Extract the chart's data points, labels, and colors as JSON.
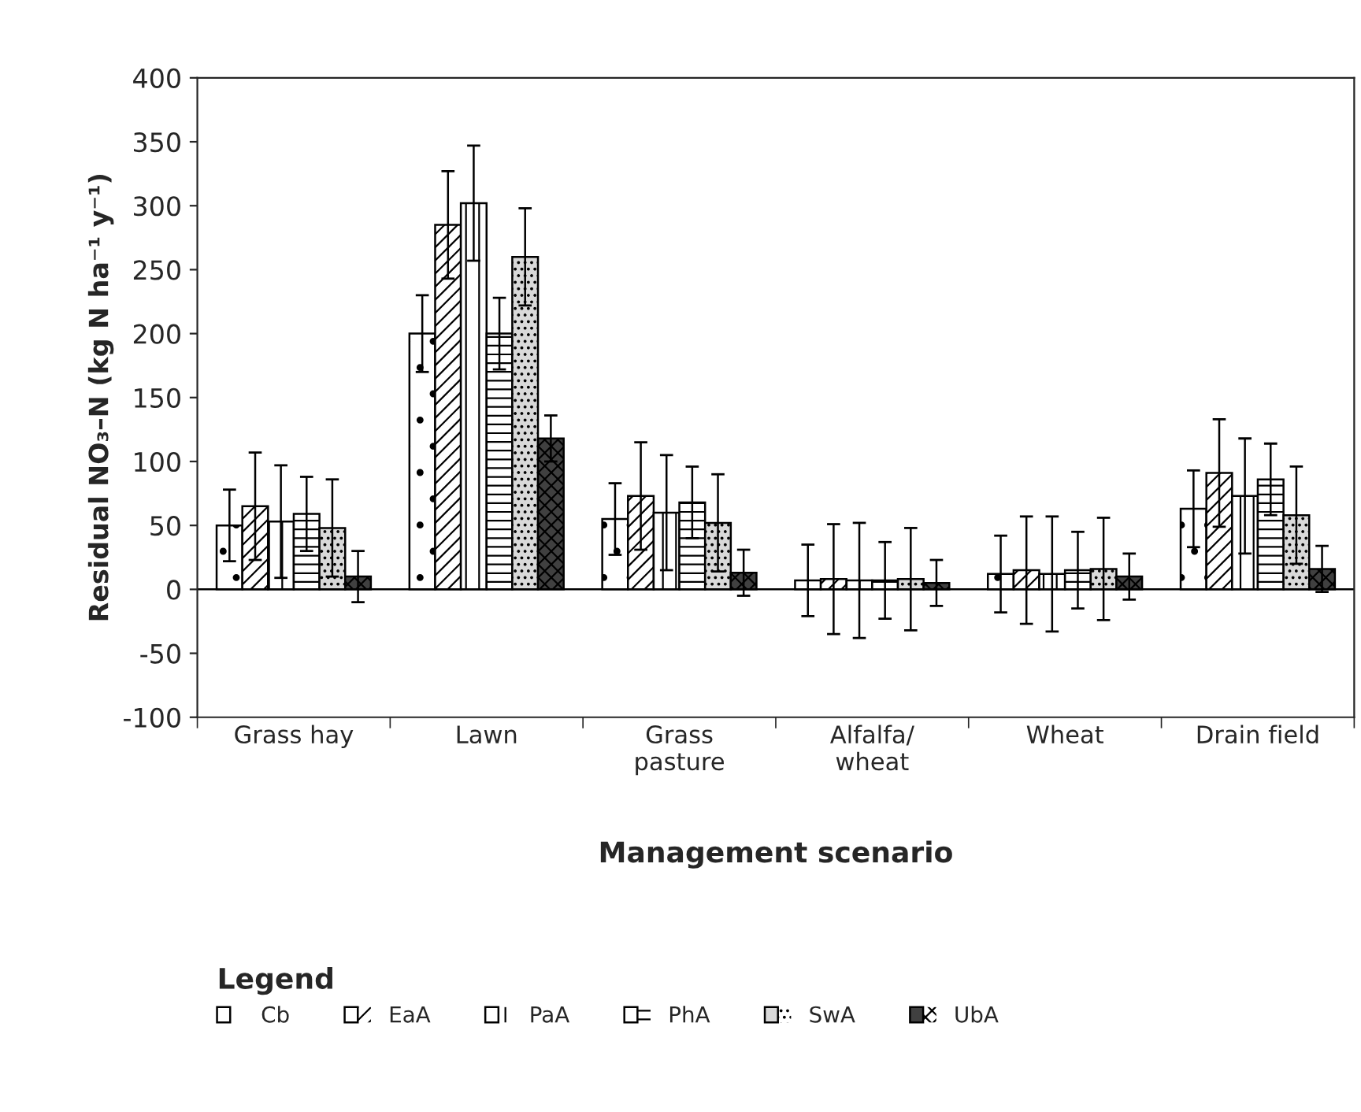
{
  "chart_data": {
    "type": "bar",
    "xlabel": "Management scenario",
    "ylabel": "Residual NO₃–N (kg N ha⁻¹ y⁻¹)",
    "legend_title": "Legend",
    "legend": "bottom",
    "categories": [
      "Grass hay",
      "Lawn",
      "Grass\npasture",
      "Alfalfa/\nwheat",
      "Wheat",
      "Drain field"
    ],
    "ylim": [
      -100,
      400
    ],
    "yticks": [
      -100,
      -50,
      0,
      50,
      100,
      150,
      200,
      250,
      300,
      350,
      400
    ],
    "series": [
      {
        "name": "Cb",
        "color": "#ffffff",
        "values": [
          50,
          200,
          55,
          7,
          12,
          63
        ],
        "errors": [
          28,
          30,
          28,
          28,
          30,
          30
        ]
      },
      {
        "name": "EaA",
        "color": "#ffffff",
        "values": [
          65,
          285,
          73,
          8,
          15,
          91
        ],
        "errors": [
          42,
          42,
          42,
          43,
          42,
          42
        ]
      },
      {
        "name": "PaA",
        "color": "#ffffff",
        "values": [
          53,
          302,
          60,
          7,
          12,
          73
        ],
        "errors": [
          44,
          45,
          45,
          45,
          45,
          45
        ]
      },
      {
        "name": "PhA",
        "color": "#ffffff",
        "values": [
          59,
          200,
          68,
          7,
          15,
          86
        ],
        "errors": [
          29,
          28,
          28,
          30,
          30,
          28
        ]
      },
      {
        "name": "SwA",
        "color": "#d9d9d9",
        "values": [
          48,
          260,
          52,
          8,
          16,
          58
        ],
        "errors": [
          38,
          38,
          38,
          40,
          40,
          38
        ]
      },
      {
        "name": "UbA",
        "color": "#404040",
        "values": [
          10,
          118,
          13,
          5,
          10,
          16
        ],
        "errors": [
          20,
          18,
          18,
          18,
          18,
          18
        ]
      }
    ]
  }
}
